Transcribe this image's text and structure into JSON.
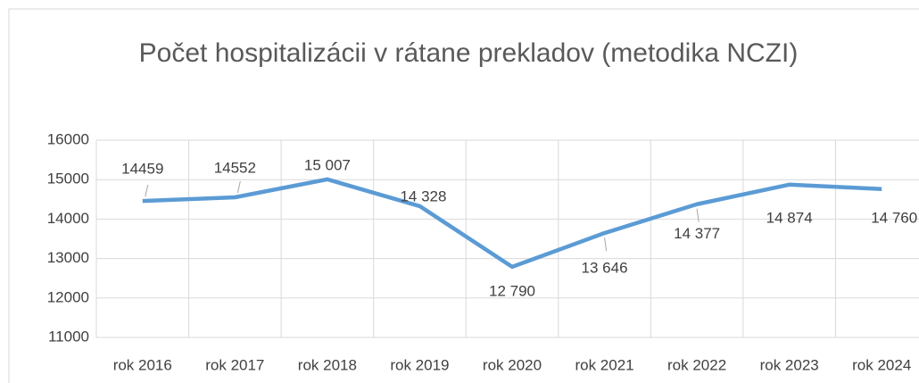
{
  "chart_data": {
    "type": "line",
    "title": "Počet hospitalizácii v rátane prekladov (metodika NCZI)",
    "categories": [
      "rok 2016",
      "rok 2017",
      "rok 2018",
      "rok 2019",
      "rok 2020",
      "rok 2021",
      "rok 2022",
      "rok 2023",
      "rok 2024"
    ],
    "series": [
      {
        "color": "#5b9bd5",
        "values": [
          14459,
          14552,
          15007,
          14328,
          12790,
          13646,
          14377,
          14874,
          14760
        ],
        "value_labels": [
          "14459",
          "14552",
          "15 007",
          "14 328",
          "12 790",
          "13 646",
          "14 377",
          "14 874",
          "14 760"
        ]
      }
    ],
    "ylim": [
      11000,
      16000
    ],
    "yticks": [
      11000,
      12000,
      13000,
      14000,
      15000,
      16000
    ],
    "grid": true
  }
}
